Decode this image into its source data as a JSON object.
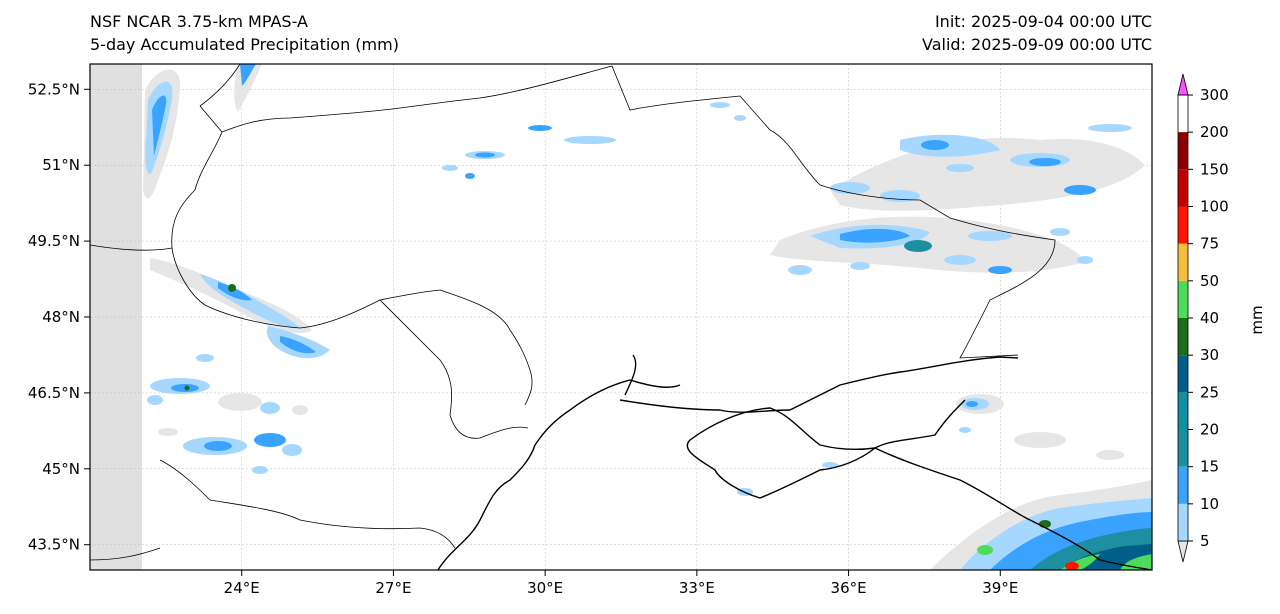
{
  "header": {
    "model": "NSF NCAR 3.75-km MPAS-A",
    "product": "5-day Accumulated Precipitation (mm)",
    "init": "Init: 2025-09-04 00:00 UTC",
    "valid": "Valid: 2025-09-09 00:00 UTC"
  },
  "map": {
    "lon_range": [
      21,
      42
    ],
    "lat_range": [
      43,
      53
    ],
    "lat_ticks": [
      "52.5°N",
      "51°N",
      "49.5°N",
      "48°N",
      "46.5°N",
      "45°N",
      "43.5°N"
    ],
    "lat_tick_values": [
      52.5,
      51,
      49.5,
      48,
      46.5,
      45,
      43.5
    ],
    "lon_ticks": [
      "24°E",
      "27°E",
      "30°E",
      "33°E",
      "36°E",
      "39°E"
    ],
    "lon_tick_values": [
      24,
      27,
      30,
      33,
      36,
      39
    ],
    "gridlines": true,
    "no_data_color": "#e0e0e0"
  },
  "colorbar": {
    "label": "mm",
    "levels": [
      "5",
      "10",
      "15",
      "20",
      "25",
      "30",
      "40",
      "50",
      "75",
      "100",
      "150",
      "200",
      "300"
    ],
    "colors": [
      "#e6e6e6",
      "#a6d8ff",
      "#3aa3ff",
      "#1e8fa0",
      "#128fa0",
      "#005f8a",
      "#1a6e1a",
      "#4cdc5a",
      "#f5be3c",
      "#ff1400",
      "#c00000",
      "#8a0000",
      "#ff50ff"
    ],
    "extend": "both"
  }
}
